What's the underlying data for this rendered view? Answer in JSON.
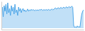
{
  "chart_data": {
    "type": "area",
    "values": [
      55,
      75,
      40,
      80,
      60,
      85,
      50,
      90,
      55,
      70,
      45,
      80,
      60,
      75,
      50,
      85,
      55,
      65,
      45,
      75,
      60,
      70,
      55,
      65,
      70,
      60,
      65,
      58,
      62,
      68,
      60,
      65,
      62,
      67,
      63,
      66,
      64,
      62,
      65,
      63,
      65,
      63,
      66,
      64,
      67,
      65,
      63,
      66,
      64,
      65,
      66,
      63,
      67,
      65,
      64,
      66,
      68,
      65,
      67,
      70,
      72,
      68,
      70,
      73,
      69,
      71,
      74,
      70,
      72,
      75,
      71,
      73,
      76,
      72,
      74,
      77,
      73,
      75,
      78,
      74,
      10,
      3,
      5,
      2,
      8,
      4,
      6,
      3,
      30,
      50,
      60,
      65
    ],
    "color": "#4da6e8",
    "xlim": [
      0,
      91
    ],
    "ylim": [
      -5,
      95
    ],
    "tick_labels": false
  }
}
